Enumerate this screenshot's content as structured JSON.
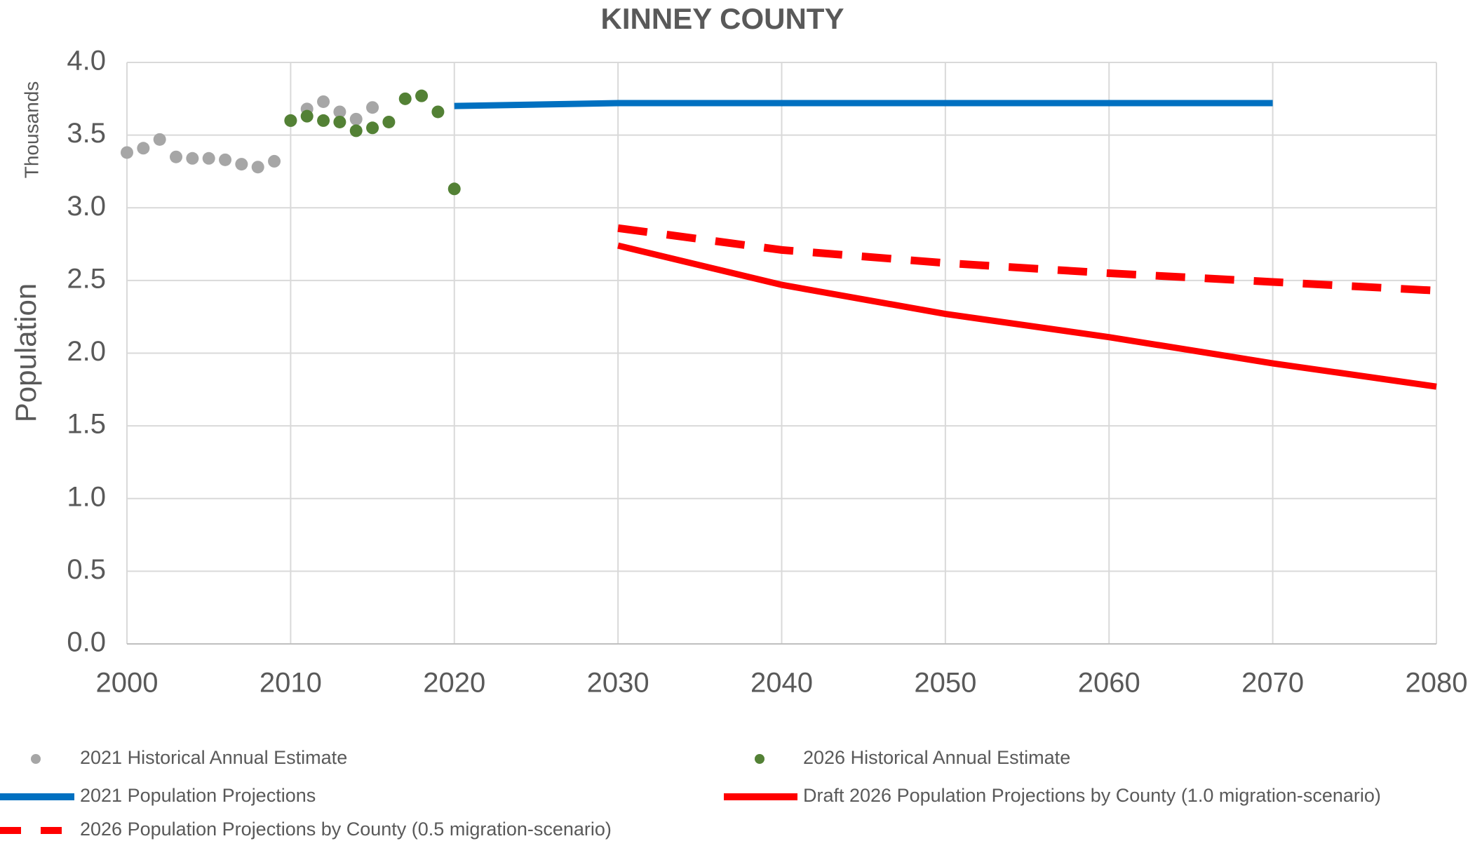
{
  "chart_data": {
    "type": "line",
    "title": "KINNEY COUNTY",
    "y_label": "Population",
    "y_unit_label": "Thousands",
    "xlim": [
      2000,
      2080
    ],
    "xticks": [
      2000,
      2010,
      2020,
      2030,
      2040,
      2050,
      2060,
      2070,
      2080
    ],
    "ylim": [
      0,
      4
    ],
    "yticks": [
      {
        "value": 0,
        "label": "0.0"
      },
      0.5,
      {
        "value": 1,
        "label": "1.0"
      },
      1.5,
      {
        "value": 2,
        "label": "2.0"
      },
      2.5,
      {
        "value": 3,
        "label": "3.0"
      },
      3.5,
      {
        "value": 4,
        "label": "4.0"
      }
    ],
    "grid": true,
    "series": [
      {
        "name": "2021 Historical Annual Estimate",
        "kind": "scatter",
        "color": "#a6a6a6",
        "x": [
          2000,
          2001,
          2002,
          2003,
          2004,
          2005,
          2006,
          2007,
          2008,
          2009,
          2010,
          2011,
          2012,
          2013,
          2014,
          2015
        ],
        "values": [
          3.38,
          3.41,
          3.47,
          3.35,
          3.34,
          3.34,
          3.33,
          3.3,
          3.28,
          3.32,
          3.6,
          3.68,
          3.73,
          3.66,
          3.61,
          3.69
        ]
      },
      {
        "name": "2026 Historical Annual Estimate",
        "kind": "scatter",
        "color": "#538135",
        "x": [
          2010,
          2011,
          2012,
          2013,
          2014,
          2015,
          2016,
          2017,
          2018,
          2019,
          2020
        ],
        "values": [
          3.6,
          3.63,
          3.6,
          3.59,
          3.53,
          3.55,
          3.59,
          3.75,
          3.77,
          3.66,
          3.13
        ]
      },
      {
        "name": "2021 Population Projections",
        "kind": "line",
        "color": "#0070c0",
        "x": [
          2020,
          2030,
          2040,
          2050,
          2060,
          2070
        ],
        "values": [
          3.7,
          3.72,
          3.72,
          3.72,
          3.72,
          3.72
        ]
      },
      {
        "name": "Draft 2026 Population Projections by County (1.0 migration-scenario)",
        "kind": "line",
        "color": "#ff0000",
        "x": [
          2030,
          2040,
          2050,
          2060,
          2070,
          2080
        ],
        "values": [
          2.74,
          2.47,
          2.27,
          2.11,
          1.93,
          1.77
        ]
      },
      {
        "name": "2026 Population Projections by County (0.5 migration-scenario)",
        "kind": "line",
        "dashed": true,
        "color": "#ff0000",
        "x": [
          2030,
          2040,
          2050,
          2060,
          2070,
          2080
        ],
        "values": [
          2.86,
          2.71,
          2.62,
          2.55,
          2.49,
          2.43
        ]
      }
    ]
  }
}
